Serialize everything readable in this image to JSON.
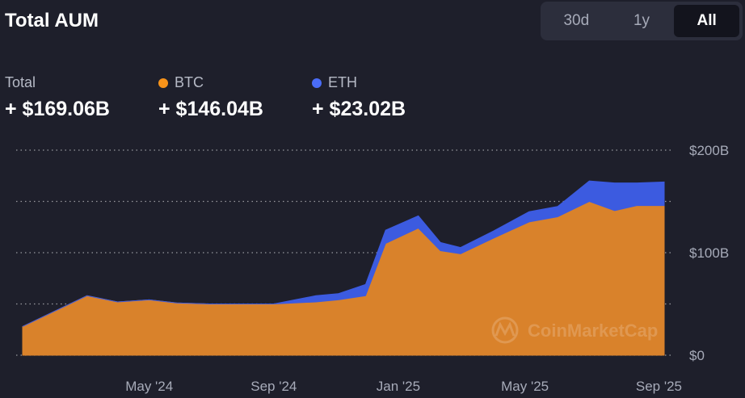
{
  "header": {
    "title": "Total AUM",
    "ranges": [
      {
        "label": "30d",
        "active": false
      },
      {
        "label": "1y",
        "active": false
      },
      {
        "label": "All",
        "active": true
      }
    ]
  },
  "stats": {
    "total": {
      "label": "Total",
      "value": "+ $169.06B"
    },
    "btc": {
      "label": "BTC",
      "value": "+ $146.04B",
      "color": "#f7931a"
    },
    "eth": {
      "label": "ETH",
      "value": "+ $23.02B",
      "color": "#4a6cf7"
    }
  },
  "watermark": "CoinMarketCap",
  "chart_data": {
    "type": "area",
    "stacked": true,
    "x": [
      "2024-01-11",
      "2024-03-12",
      "2024-04-10",
      "2024-05-10",
      "2024-06-05",
      "2024-07-05",
      "2024-08-05",
      "2024-09-05",
      "2024-10-15",
      "2024-11-05",
      "2024-12-01",
      "2024-12-20",
      "2025-01-20",
      "2025-02-10",
      "2025-03-01",
      "2025-04-01",
      "2025-05-05",
      "2025-06-01",
      "2025-07-01",
      "2025-07-25",
      "2025-08-15",
      "2025-09-10"
    ],
    "series": [
      {
        "name": "BTC",
        "color": "#d9822b",
        "values": [
          28,
          58,
          52,
          54,
          51,
          50,
          50,
          50,
          52,
          54,
          58,
          109,
          124,
          102,
          99,
          114,
          130,
          135,
          150,
          141,
          146,
          146
        ]
      },
      {
        "name": "ETH",
        "color": "#3c5be0",
        "values": [
          0,
          0,
          0,
          0,
          0,
          0,
          0,
          0,
          6,
          6,
          11,
          13,
          12,
          8,
          6,
          7,
          10,
          10,
          20,
          27,
          22,
          23
        ]
      }
    ],
    "xticks": [
      {
        "label": "May '24",
        "date": "2024-05-10"
      },
      {
        "label": "Sep '24",
        "date": "2024-09-05"
      },
      {
        "label": "Jan '25",
        "date": "2025-01-01"
      },
      {
        "label": "May '25",
        "date": "2025-05-01"
      },
      {
        "label": "Sep '25",
        "date": "2025-09-05"
      }
    ],
    "yticks": [
      {
        "label": "$0",
        "value": 0
      },
      {
        "label": "$100B",
        "value": 100
      },
      {
        "label": "$200B",
        "value": 200
      }
    ],
    "ylim": [
      0,
      200
    ],
    "grid": true,
    "grid_style": "dotted"
  }
}
